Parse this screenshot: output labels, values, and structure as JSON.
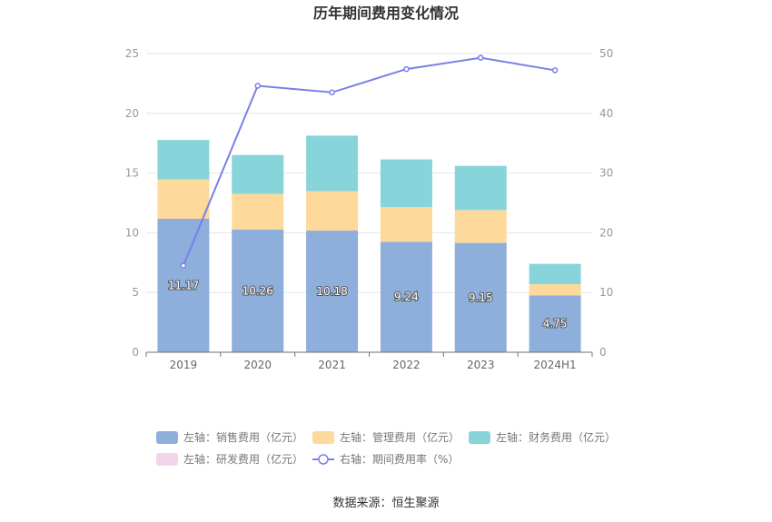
{
  "chart_data": {
    "type": "bar",
    "title": "历年期间费用变化情况",
    "categories": [
      "2019",
      "2020",
      "2021",
      "2022",
      "2023",
      "2024H1"
    ],
    "series": [
      {
        "name": "左轴：销售费用（亿元）",
        "type": "bar",
        "axis": "left",
        "color": "#8eaedb",
        "values": [
          11.17,
          10.26,
          10.18,
          9.24,
          9.15,
          4.75
        ]
      },
      {
        "name": "左轴：管理费用（亿元）",
        "type": "bar",
        "axis": "left",
        "color": "#fdd99b",
        "values": [
          3.3,
          3.0,
          3.3,
          2.9,
          2.75,
          0.95
        ]
      },
      {
        "name": "左轴：财务费用（亿元）",
        "type": "bar",
        "axis": "left",
        "color": "#87d5da",
        "values": [
          3.3,
          3.25,
          4.65,
          4.0,
          3.7,
          1.7
        ]
      },
      {
        "name": "左轴：研发费用（亿元）",
        "type": "bar",
        "axis": "left",
        "color": "#f2d5ea",
        "values": [
          0,
          0,
          0,
          0,
          0,
          0
        ]
      },
      {
        "name": "右轴：期间费用率（%）",
        "type": "line",
        "axis": "right",
        "color": "#7b7fe6",
        "values": [
          14.5,
          44.6,
          43.5,
          47.4,
          49.3,
          47.2
        ]
      }
    ],
    "data_labels": [
      "11.17",
      "10.26",
      "10.18",
      "9.24",
      "9.15",
      "4.75"
    ],
    "y_left": {
      "min": 0,
      "max": 25,
      "ticks": [
        "0",
        "5",
        "10",
        "15",
        "20",
        "25"
      ]
    },
    "y_right": {
      "min": 0,
      "max": 50,
      "ticks": [
        "0",
        "10",
        "20",
        "30",
        "40",
        "50"
      ]
    },
    "grid": true,
    "legend_position": "bottom"
  },
  "source": "数据来源：恒生聚源"
}
